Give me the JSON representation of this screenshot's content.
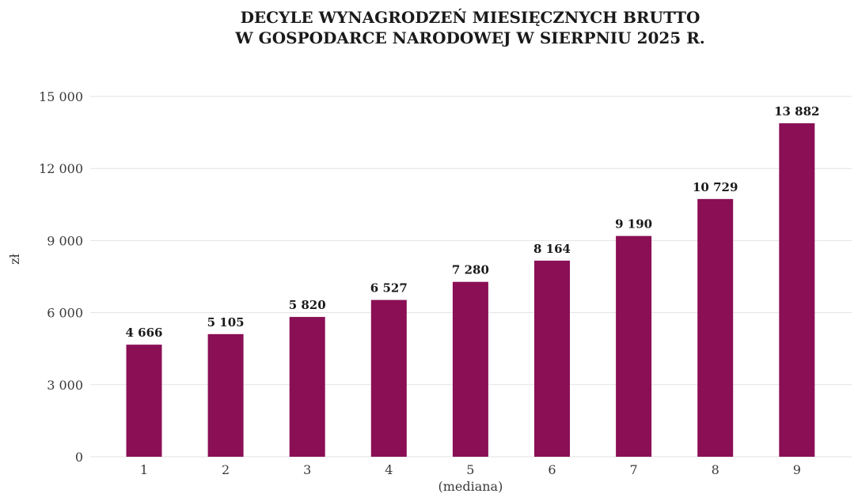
{
  "chart_data": {
    "type": "bar",
    "title": [
      "DECYLE WYNAGRODZEŃ MIESIĘCZNYCH BRUTTO",
      "W GOSPODARCE NARODOWEJ W SIERPNIU 2025 R."
    ],
    "ylabel": "zł",
    "xlabel": "",
    "categories": [
      "1",
      "2",
      "3",
      "4",
      "5",
      "6",
      "7",
      "8",
      "9"
    ],
    "category_notes": [
      "",
      "",
      "",
      "",
      "(mediana)",
      "",
      "",
      "",
      ""
    ],
    "values": [
      4666,
      5105,
      5820,
      6527,
      7280,
      8164,
      9190,
      10729,
      13882
    ],
    "value_labels": [
      "4 666",
      "5 105",
      "5 820",
      "6 527",
      "7 280",
      "8 164",
      "9 190",
      "10 729",
      "13 882"
    ],
    "ylim": [
      0,
      15000
    ],
    "yticks": [
      0,
      3000,
      6000,
      9000,
      12000,
      15000
    ],
    "ytick_labels": [
      "0",
      "3 000",
      "6 000",
      "9 000",
      "12 000",
      "15 000"
    ],
    "grid": true,
    "legend": "none",
    "bar_color": "#8a0f55"
  }
}
